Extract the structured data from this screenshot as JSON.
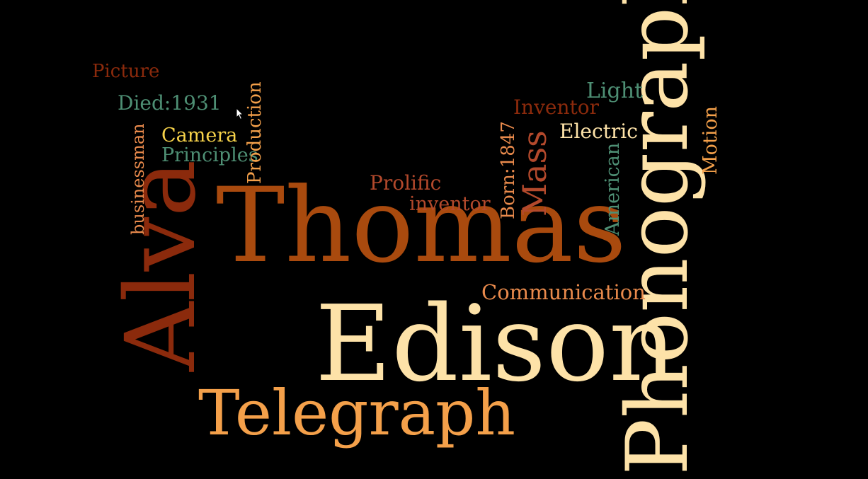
{
  "colors": {
    "background": "#000000",
    "cream": "#fde2a8",
    "dark_orange": "#a94a0e",
    "orange": "#f4a04a",
    "rust": "#b3492c",
    "teal": "#4e8f74",
    "gold": "#f6d24a",
    "brown": "#8b2a0c",
    "light_orange": "#e98a4c"
  },
  "words": [
    {
      "id": "edison",
      "text": "Edison",
      "color": "cream"
    },
    {
      "id": "thomas",
      "text": "Thomas",
      "color": "dark_orange"
    },
    {
      "id": "phonograph",
      "text": "Phonograph",
      "color": "cream"
    },
    {
      "id": "alva",
      "text": "Alva",
      "color": "brown"
    },
    {
      "id": "telegraph",
      "text": "Telegraph",
      "color": "orange"
    },
    {
      "id": "mass",
      "text": "Mass",
      "color": "rust"
    },
    {
      "id": "communication",
      "text": "Communication",
      "color": "light_orange"
    },
    {
      "id": "picture",
      "text": "Picture",
      "color": "brown"
    },
    {
      "id": "died",
      "text": "Died:1931",
      "color": "teal"
    },
    {
      "id": "camera",
      "text": "Camera",
      "color": "gold"
    },
    {
      "id": "principles",
      "text": "Principles",
      "color": "teal"
    },
    {
      "id": "production",
      "text": "Production",
      "color": "orange"
    },
    {
      "id": "businessman",
      "text": "businessman",
      "color": "light_orange"
    },
    {
      "id": "prolific",
      "text": "Prolific",
      "color": "rust"
    },
    {
      "id": "inventor-lower",
      "text": "inventor",
      "color": "rust"
    },
    {
      "id": "born",
      "text": "Born:1847",
      "color": "light_orange"
    },
    {
      "id": "inventor-cap",
      "text": "Inventor",
      "color": "brown"
    },
    {
      "id": "light",
      "text": "Light",
      "color": "teal"
    },
    {
      "id": "electric",
      "text": "Electric",
      "color": "cream"
    },
    {
      "id": "american",
      "text": "American",
      "color": "teal"
    },
    {
      "id": "motion",
      "text": "Motion",
      "color": "orange"
    }
  ]
}
